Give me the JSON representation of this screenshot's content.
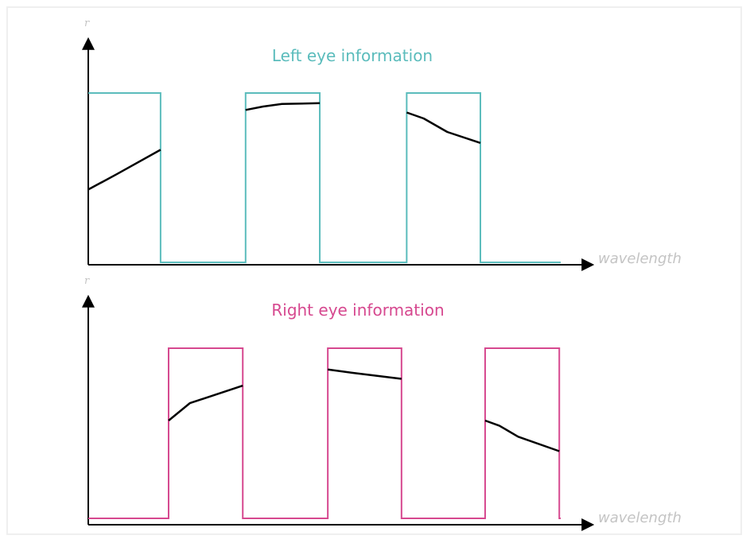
{
  "colors": {
    "left": "#5bbcbc",
    "right": "#d6488f",
    "curve": "#000000",
    "axis": "#000000",
    "muted": "#c4c4c4"
  },
  "panels": [
    {
      "id": "left",
      "title": "Left eye information",
      "y_symbol": "r",
      "x_label": "wavelength",
      "color_key": "left",
      "passbands": [
        [
          0.0,
          0.153
        ],
        [
          0.333,
          0.49
        ],
        [
          0.674,
          0.83
        ]
      ],
      "curves": [
        [
          [
            0.0,
            0.43
          ],
          [
            0.06,
            0.52
          ],
          [
            0.153,
            0.665
          ]
        ],
        [
          [
            0.333,
            0.9
          ],
          [
            0.37,
            0.92
          ],
          [
            0.41,
            0.935
          ],
          [
            0.49,
            0.94
          ]
        ],
        [
          [
            0.674,
            0.885
          ],
          [
            0.71,
            0.85
          ],
          [
            0.76,
            0.77
          ],
          [
            0.83,
            0.705
          ]
        ]
      ]
    },
    {
      "id": "right",
      "title": "Right eye information",
      "y_symbol": "r",
      "x_label": "wavelength",
      "color_key": "right",
      "passbands": [
        [
          0.17,
          0.327
        ],
        [
          0.507,
          0.663
        ],
        [
          0.84,
          0.997
        ]
      ],
      "curves": [
        [
          [
            0.17,
            0.575
          ],
          [
            0.215,
            0.677
          ],
          [
            0.327,
            0.78
          ]
        ],
        [
          [
            0.507,
            0.875
          ],
          [
            0.56,
            0.855
          ],
          [
            0.663,
            0.82
          ]
        ],
        [
          [
            0.84,
            0.575
          ],
          [
            0.87,
            0.545
          ],
          [
            0.91,
            0.48
          ],
          [
            0.997,
            0.395
          ]
        ]
      ]
    }
  ]
}
